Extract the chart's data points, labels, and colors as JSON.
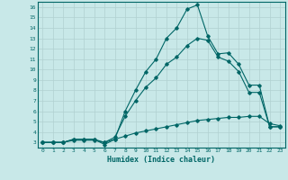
{
  "xlabel": "Humidex (Indice chaleur)",
  "background_color": "#c8e8e8",
  "line_color": "#006666",
  "grid_color": "#b0d0d0",
  "xlim": [
    -0.5,
    23.5
  ],
  "ylim": [
    2.5,
    16.5
  ],
  "yticks": [
    3,
    4,
    5,
    6,
    7,
    8,
    9,
    10,
    11,
    12,
    13,
    14,
    15,
    16
  ],
  "xticks": [
    0,
    1,
    2,
    3,
    4,
    5,
    6,
    7,
    8,
    9,
    10,
    11,
    12,
    13,
    14,
    15,
    16,
    17,
    18,
    19,
    20,
    21,
    22,
    23
  ],
  "series": [
    {
      "x": [
        0,
        1,
        2,
        3,
        4,
        5,
        6,
        7,
        8,
        9,
        10,
        11,
        12,
        13,
        14,
        15,
        16,
        17,
        18,
        19,
        20,
        21,
        22,
        23
      ],
      "y": [
        3,
        3,
        3,
        3.3,
        3.3,
        3.3,
        2.8,
        3.3,
        6,
        8,
        9.8,
        11,
        13,
        14,
        15.8,
        16.2,
        13.2,
        11.5,
        11.6,
        10.5,
        8.5,
        8.5,
        4.5,
        4.5
      ]
    },
    {
      "x": [
        0,
        1,
        2,
        3,
        4,
        5,
        6,
        7,
        8,
        9,
        10,
        11,
        12,
        13,
        14,
        15,
        16,
        17,
        18,
        19,
        20,
        21,
        22,
        23
      ],
      "y": [
        3,
        3,
        3,
        3.3,
        3.3,
        3.3,
        3.0,
        3.5,
        5.5,
        7,
        8.3,
        9.2,
        10.5,
        11.2,
        12.3,
        13.0,
        12.8,
        11.2,
        10.8,
        9.8,
        7.8,
        7.8,
        4.5,
        4.5
      ]
    },
    {
      "x": [
        0,
        1,
        2,
        3,
        4,
        5,
        6,
        7,
        8,
        9,
        10,
        11,
        12,
        13,
        14,
        15,
        16,
        17,
        18,
        19,
        20,
        21,
        22,
        23
      ],
      "y": [
        3,
        3,
        3,
        3.2,
        3.2,
        3.2,
        3.0,
        3.3,
        3.6,
        3.9,
        4.1,
        4.3,
        4.5,
        4.7,
        4.9,
        5.1,
        5.2,
        5.3,
        5.4,
        5.4,
        5.5,
        5.5,
        4.8,
        4.6
      ]
    }
  ]
}
